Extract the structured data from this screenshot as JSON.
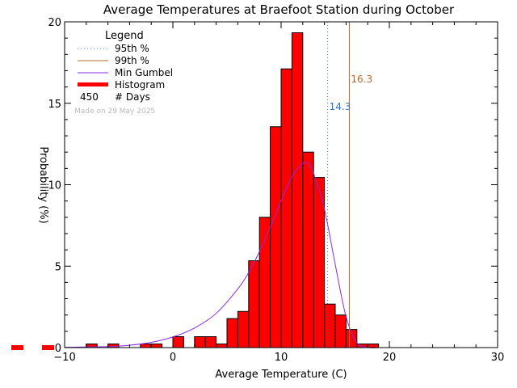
{
  "chart_data": {
    "type": "bar",
    "title": "Average Temperatures at Braefoot Station during October",
    "xlabel": "Average Temperature (C)",
    "ylabel": "Probability (%)",
    "xlim": [
      -10,
      30
    ],
    "ylim": [
      0,
      20
    ],
    "xticks": [
      "−10",
      "0",
      "10",
      "20",
      "30"
    ],
    "yticks": [
      "0",
      "5",
      "10",
      "15",
      "20"
    ],
    "bin_width": 1,
    "bins": [
      {
        "x0": -8,
        "value": 0.22
      },
      {
        "x0": -6,
        "value": 0.22
      },
      {
        "x0": -3,
        "value": 0.22
      },
      {
        "x0": -2,
        "value": 0.22
      },
      {
        "x0": 0,
        "value": 0.67
      },
      {
        "x0": 2,
        "value": 0.67
      },
      {
        "x0": 3,
        "value": 0.67
      },
      {
        "x0": 4,
        "value": 0.22
      },
      {
        "x0": 5,
        "value": 1.78
      },
      {
        "x0": 6,
        "value": 2.22
      },
      {
        "x0": 7,
        "value": 5.33
      },
      {
        "x0": 8,
        "value": 8.0
      },
      {
        "x0": 9,
        "value": 13.56
      },
      {
        "x0": 10,
        "value": 17.11
      },
      {
        "x0": 11,
        "value": 19.33
      },
      {
        "x0": 12,
        "value": 12.0
      },
      {
        "x0": 13,
        "value": 10.44
      },
      {
        "x0": 14,
        "value": 2.67
      },
      {
        "x0": 15,
        "value": 2.0
      },
      {
        "x0": 16,
        "value": 1.11
      },
      {
        "x0": 17,
        "value": 0.22
      },
      {
        "x0": 18,
        "value": 0.22
      }
    ],
    "gumbel_curve": {
      "name": "Min Gumbel",
      "points": [
        [
          -10,
          0.02
        ],
        [
          -6,
          0.06
        ],
        [
          -4,
          0.14
        ],
        [
          -2,
          0.32
        ],
        [
          0,
          0.65
        ],
        [
          2,
          1.2
        ],
        [
          4,
          2.1
        ],
        [
          6,
          3.6
        ],
        [
          7,
          4.6
        ],
        [
          8,
          5.9
        ],
        [
          9,
          7.4
        ],
        [
          10,
          9.0
        ],
        [
          11,
          10.5
        ],
        [
          12,
          11.3
        ],
        [
          12.5,
          11.3
        ],
        [
          13,
          10.7
        ],
        [
          14,
          8.5
        ],
        [
          15,
          5.1
        ],
        [
          16,
          1.9
        ],
        [
          17,
          0.3
        ],
        [
          18,
          0.01
        ],
        [
          19,
          0.0
        ]
      ]
    },
    "percentiles": [
      {
        "name": "95th %",
        "value": 14.3,
        "label": "14.3",
        "style": "dotted",
        "color": "#2a6fe0"
      },
      {
        "name": "99th %",
        "value": 16.3,
        "label": "16.3",
        "style": "solid",
        "color": "#b56a2b"
      }
    ],
    "legend": {
      "title": "Legend",
      "placement": "top-left",
      "items": [
        {
          "label": "95th %",
          "style": "dotted",
          "color": "#2a6fe0"
        },
        {
          "label": "99th %",
          "style": "solid",
          "color": "#b56a2b"
        },
        {
          "label": "Min Gumbel",
          "style": "solid",
          "color": "#8a2be2"
        },
        {
          "label": "Histogram",
          "style": "thick",
          "color": "#ff0000"
        }
      ],
      "days_value": "450",
      "days_label": "# Days"
    },
    "stamp": "Made on 29 May 2025",
    "colors": {
      "histogram": "#ff0000",
      "gumbel": "#8a2be2",
      "p95": "#2a6fe0",
      "p99": "#b56a2b"
    }
  }
}
